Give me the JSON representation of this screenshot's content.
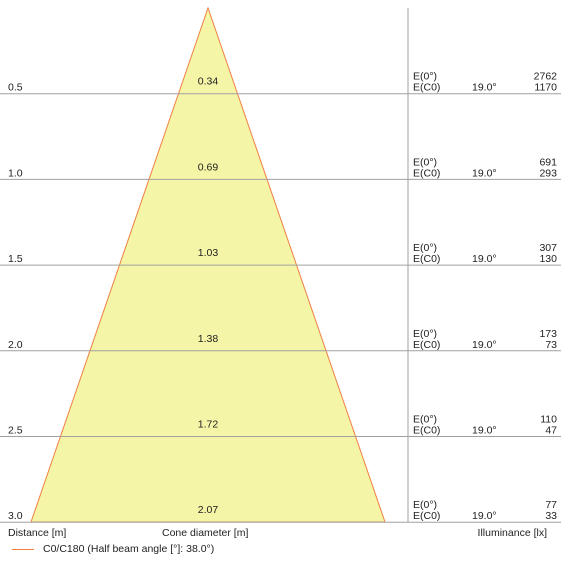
{
  "colors": {
    "cone_fill": "#f5f5a8",
    "cone_edge": "#f08040",
    "grid": "#a0a0a0"
  },
  "rows": [
    {
      "distance": "0.5",
      "diameter": "0.34",
      "e0_label": "E(0°)",
      "ec0_label": "E(C0)",
      "angle": "19.0°",
      "e0_value": "2762",
      "ec0_value": "1170"
    },
    {
      "distance": "1.0",
      "diameter": "0.69",
      "e0_label": "E(0°)",
      "ec0_label": "E(C0)",
      "angle": "19.0°",
      "e0_value": "691",
      "ec0_value": "293"
    },
    {
      "distance": "1.5",
      "diameter": "1.03",
      "e0_label": "E(0°)",
      "ec0_label": "E(C0)",
      "angle": "19.0°",
      "e0_value": "307",
      "ec0_value": "130"
    },
    {
      "distance": "2.0",
      "diameter": "1.38",
      "e0_label": "E(0°)",
      "ec0_label": "E(C0)",
      "angle": "19.0°",
      "e0_value": "173",
      "ec0_value": "73"
    },
    {
      "distance": "2.5",
      "diameter": "1.72",
      "e0_label": "E(0°)",
      "ec0_label": "E(C0)",
      "angle": "19.0°",
      "e0_value": "110",
      "ec0_value": "47"
    },
    {
      "distance": "3.0",
      "diameter": "2.07",
      "e0_label": "E(0°)",
      "ec0_label": "E(C0)",
      "angle": "19.0°",
      "e0_value": "77",
      "ec0_value": "33"
    }
  ],
  "footer": {
    "distance_label": "Distance [m]",
    "cone_label": "Cone diameter [m]",
    "illuminance_label": "Illuminance [lx]"
  },
  "legend": {
    "label": "C0/C180 (Half beam angle [°]: 38.0°)"
  }
}
